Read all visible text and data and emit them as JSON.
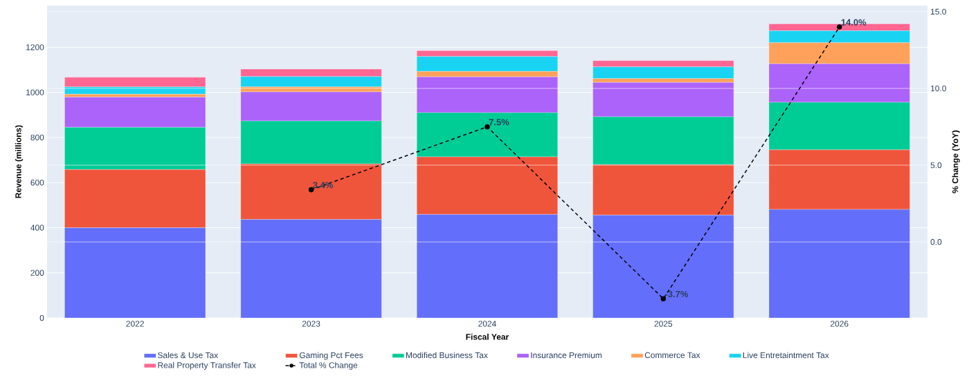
{
  "chart_data": {
    "type": "bar",
    "stacked": true,
    "xlabel": "Fiscal Year",
    "ylabel": "Revenue (millions)",
    "y2label": "% Change (YoY)",
    "categories": [
      "2022",
      "2023",
      "2024",
      "2025",
      "2026"
    ],
    "ylim": [
      0,
      1385
    ],
    "yticks": [
      0,
      200,
      400,
      600,
      800,
      1000,
      1200
    ],
    "y2lim": [
      -4.95,
      15.4
    ],
    "y2ticks": [
      {
        "value": 0,
        "label": "0.0"
      },
      {
        "value": 5,
        "label": "5.0"
      },
      {
        "value": 10,
        "label": "10.0"
      },
      {
        "value": 15,
        "label": "15.0"
      }
    ],
    "grid": "y",
    "legend": "bottom",
    "series": [
      {
        "name": "Sales & Use Tax",
        "color": "#636efa",
        "values": [
          400,
          437,
          459,
          456,
          481
        ]
      },
      {
        "name": "Gaming Pct Fees",
        "color": "#ef553b",
        "values": [
          258,
          246,
          255,
          224,
          264
        ]
      },
      {
        "name": "Modified Business Tax",
        "color": "#00cc96",
        "values": [
          187,
          190,
          196,
          212,
          211
        ]
      },
      {
        "name": "Insurance Premium",
        "color": "#ab63fa",
        "values": [
          134,
          129,
          159,
          152,
          171
        ]
      },
      {
        "name": "Commerce Tax",
        "color": "#ffa15a",
        "values": [
          13,
          22,
          24,
          17,
          93
        ]
      },
      {
        "name": "Live Entretaintment Tax",
        "color": "#19d3f3",
        "values": [
          32,
          46,
          66,
          52,
          53
        ]
      },
      {
        "name": "Real Property Transfer Tax",
        "color": "#ff6692",
        "values": [
          43,
          33,
          26,
          28,
          31
        ]
      },
      {
        "name": "Total % Change",
        "type": "line",
        "axis": "y2",
        "color": "#000000",
        "marker": "circle",
        "line_style": "dashed",
        "values": [
          null,
          3.4,
          7.5,
          -3.7,
          14.0
        ],
        "value_labels": [
          null,
          "3.4%",
          "7.5%",
          "-3.7%",
          "14.0%"
        ]
      }
    ]
  }
}
